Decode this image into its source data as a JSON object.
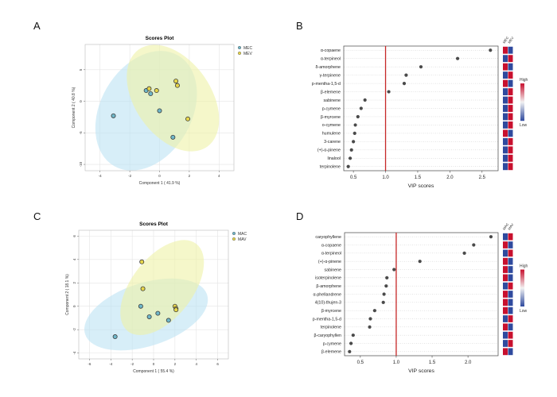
{
  "figure": {
    "panel_letters": [
      "A",
      "B",
      "C",
      "D"
    ],
    "colors": {
      "group1_fill": "#bde3f3",
      "group2_fill": "#eef1a6",
      "group1_point": "#6fb7c9",
      "group2_point": "#e7d64a",
      "point_stroke": "#3d3d3d",
      "vip_cutoff_line": "#c62828",
      "vip_point": "#4a4a4a",
      "heat_high": "#c8102e",
      "heat_low": "#2f4a9e"
    }
  },
  "chart_data": [
    {
      "panel": "A",
      "type": "scatter",
      "title": "Scores Plot",
      "xlabel": "Component 1 ( 41.9 %)",
      "ylabel": "Component 2 ( 40.8 %)",
      "xlim": [
        -5,
        5
      ],
      "ylim": [
        -11,
        9
      ],
      "xticks": [
        "-4",
        "-2",
        "0",
        "2",
        "4"
      ],
      "yticks": [
        "-10",
        "-5",
        "0",
        "5"
      ],
      "legend": [
        "MEC",
        "MEV"
      ],
      "legend_position": "top-right",
      "grid": true,
      "ellipses": [
        {
          "group": "MEC",
          "cx": -0.9,
          "cy": -1.5,
          "rx": 4.3,
          "ry": 7.2,
          "angle": 60
        },
        {
          "group": "MEV",
          "cx": 0.9,
          "cy": 0.5,
          "rx": 4.0,
          "ry": 6.0,
          "angle": -55
        }
      ],
      "series": [
        {
          "name": "MEC",
          "points": [
            [
              -3.1,
              -2.3
            ],
            [
              -0.9,
              1.7
            ],
            [
              -0.6,
              1.2
            ],
            [
              0.0,
              -1.5
            ],
            [
              0.9,
              -5.7
            ]
          ]
        },
        {
          "name": "MEV",
          "points": [
            [
              -0.7,
              2.0
            ],
            [
              -0.2,
              1.7
            ],
            [
              1.1,
              3.2
            ],
            [
              1.2,
              2.5
            ],
            [
              1.9,
              -2.8
            ]
          ]
        }
      ]
    },
    {
      "panel": "B",
      "type": "scatter",
      "xlabel": "VIP scores",
      "xlim": [
        0.35,
        2.75
      ],
      "xticks": [
        0.5,
        1.0,
        1.5,
        2.0,
        2.5
      ],
      "xtick_labels": [
        "0.5",
        "1.0",
        "1.5",
        "2.0",
        "2.5"
      ],
      "cutoff": 1.0,
      "heat_columns": [
        "MEC",
        "MEV"
      ],
      "heat_legend": {
        "high": "High",
        "low": "Low"
      },
      "items": [
        {
          "label": "α-copaene",
          "vip": 2.63,
          "heat": [
            "high",
            "low"
          ]
        },
        {
          "label": "α-terpineol",
          "vip": 2.12,
          "heat": [
            "low",
            "high"
          ]
        },
        {
          "label": "δ-amorphene",
          "vip": 1.55,
          "heat": [
            "high",
            "low"
          ]
        },
        {
          "label": "γ-terpinene",
          "vip": 1.32,
          "heat": [
            "low",
            "high"
          ]
        },
        {
          "label": "p-mentha-1,5-d",
          "vip": 1.29,
          "heat": [
            "high",
            "low"
          ]
        },
        {
          "label": "β-elemene",
          "vip": 1.05,
          "heat": [
            "low",
            "high"
          ]
        },
        {
          "label": "sabinene",
          "vip": 0.68,
          "heat": [
            "low",
            "high"
          ]
        },
        {
          "label": "p-cymene",
          "vip": 0.62,
          "heat": [
            "low",
            "high"
          ]
        },
        {
          "label": "β-myrcene",
          "vip": 0.57,
          "heat": [
            "low",
            "high"
          ]
        },
        {
          "label": "o-cymene",
          "vip": 0.53,
          "heat": [
            "low",
            "high"
          ]
        },
        {
          "label": "humulene",
          "vip": 0.52,
          "heat": [
            "high",
            "low"
          ]
        },
        {
          "label": "3-carene",
          "vip": 0.5,
          "heat": [
            "low",
            "high"
          ]
        },
        {
          "label": "(+)-α-pinene",
          "vip": 0.47,
          "heat": [
            "low",
            "high"
          ]
        },
        {
          "label": "linalool",
          "vip": 0.45,
          "heat": [
            "low",
            "high"
          ]
        },
        {
          "label": "terpinolene",
          "vip": 0.42,
          "heat": [
            "low",
            "high"
          ]
        }
      ]
    },
    {
      "panel": "C",
      "type": "scatter",
      "title": "Scores Plot",
      "xlabel": "Component 1 ( 55.4 %)",
      "ylabel": "Component 2 ( 18.1 %)",
      "xlim": [
        -7,
        7
      ],
      "ylim": [
        -4.5,
        6.5
      ],
      "xticks": [
        "-6",
        "-4",
        "-2",
        "0",
        "2",
        "4",
        "6"
      ],
      "yticks": [
        "-4",
        "-2",
        "0",
        "2",
        "4",
        "6"
      ],
      "legend": [
        "MAC",
        "MAV"
      ],
      "legend_position": "top-right",
      "grid": true,
      "ellipses": [
        {
          "group": "MAC",
          "cx": -0.7,
          "cy": -0.7,
          "rx": 6.0,
          "ry": 2.7,
          "angle": 18
        },
        {
          "group": "MAV",
          "cx": 0.8,
          "cy": 1.6,
          "rx": 5.2,
          "ry": 2.6,
          "angle": 52
        }
      ],
      "series": [
        {
          "name": "MAC",
          "points": [
            [
              -3.6,
              -2.6
            ],
            [
              -1.2,
              0.0
            ],
            [
              -0.4,
              -0.9
            ],
            [
              0.4,
              -0.6
            ],
            [
              1.4,
              -1.2
            ]
          ]
        },
        {
          "name": "MAV",
          "points": [
            [
              -1.1,
              3.8
            ],
            [
              -1.0,
              1.5
            ],
            [
              2.0,
              0.0
            ],
            [
              2.1,
              -0.2
            ],
            [
              2.1,
              -0.3
            ]
          ]
        }
      ]
    },
    {
      "panel": "D",
      "type": "scatter",
      "xlabel": "VIP scores",
      "xlim": [
        0.28,
        2.42
      ],
      "xticks": [
        0.5,
        1.0,
        1.5,
        2.0
      ],
      "xtick_labels": [
        "0.5",
        "1.0",
        "1.5",
        "2.0"
      ],
      "cutoff": 1.0,
      "heat_columns": [
        "MAC",
        "MAV"
      ],
      "heat_legend": {
        "high": "High",
        "low": "Low"
      },
      "items": [
        {
          "label": "caryophyllene",
          "vip": 2.32,
          "heat": [
            "low",
            "high"
          ]
        },
        {
          "label": "α-copaene",
          "vip": 2.08,
          "heat": [
            "high",
            "low"
          ]
        },
        {
          "label": "α-terpineol",
          "vip": 1.95,
          "heat": [
            "low",
            "high"
          ]
        },
        {
          "label": "(+)-α-pinene",
          "vip": 1.33,
          "heat": [
            "high",
            "low"
          ]
        },
        {
          "label": "sabinene",
          "vip": 0.97,
          "heat": [
            "high",
            "low"
          ]
        },
        {
          "label": "isoterpinolene",
          "vip": 0.87,
          "heat": [
            "high",
            "low"
          ]
        },
        {
          "label": "β-amorphene",
          "vip": 0.86,
          "heat": [
            "low",
            "high"
          ]
        },
        {
          "label": "α-phellandrene",
          "vip": 0.83,
          "heat": [
            "high",
            "low"
          ]
        },
        {
          "label": "4(10)-thujen-3",
          "vip": 0.82,
          "heat": [
            "high",
            "low"
          ]
        },
        {
          "label": "β-myrcene",
          "vip": 0.7,
          "heat": [
            "high",
            "low"
          ]
        },
        {
          "label": "p-mentha-1,5-d",
          "vip": 0.64,
          "heat": [
            "low",
            "high"
          ]
        },
        {
          "label": "terpinolene",
          "vip": 0.63,
          "heat": [
            "high",
            "low"
          ]
        },
        {
          "label": "β-caryophyllen",
          "vip": 0.4,
          "heat": [
            "low",
            "high"
          ]
        },
        {
          "label": "p-cymene",
          "vip": 0.37,
          "heat": [
            "low",
            "high"
          ]
        },
        {
          "label": "β-elemene",
          "vip": 0.35,
          "heat": [
            "high",
            "low"
          ]
        }
      ]
    }
  ]
}
